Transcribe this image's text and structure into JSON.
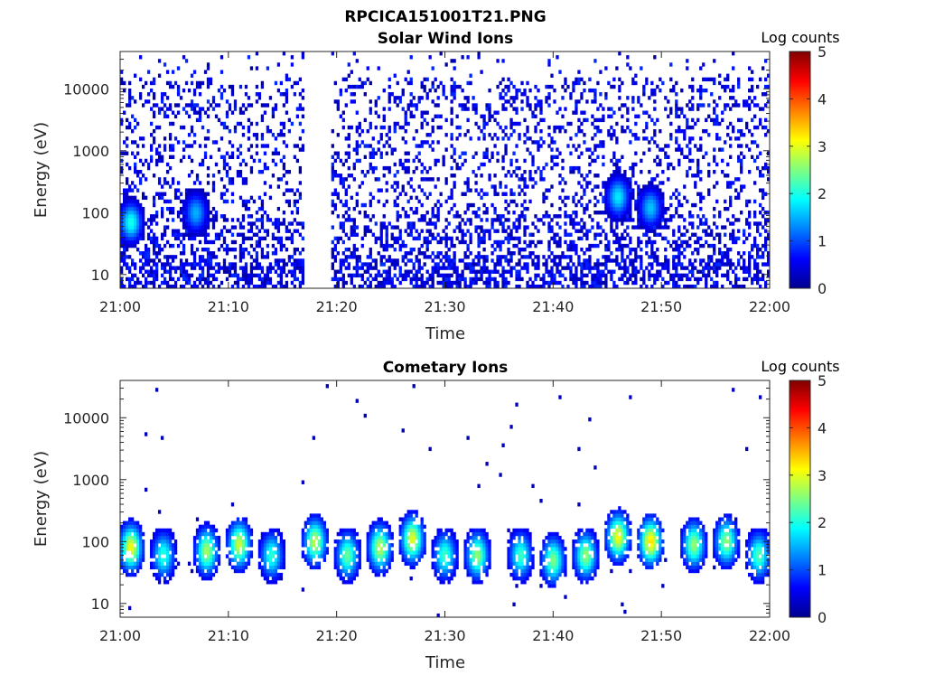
{
  "figure_title": "RPCICA151001T21.PNG",
  "colormap": "jet",
  "chart_data": [
    {
      "type": "heatmap",
      "title": "Solar Wind Ions",
      "xlabel": "Time",
      "ylabel": "Energy (eV)",
      "x_tick_labels": [
        "21:00",
        "21:10",
        "21:20",
        "21:30",
        "21:40",
        "21:50",
        "22:00"
      ],
      "x_range": [
        "21:00",
        "22:00"
      ],
      "y_scale": "log",
      "y_tick_labels": [
        "10",
        "100",
        "1000",
        "10000"
      ],
      "y_range_eV": [
        6,
        40000
      ],
      "colorbar_label": "Log counts",
      "colorbar_ticks": [
        "0",
        "1",
        "2",
        "3",
        "4",
        "5"
      ],
      "color_range": [
        0,
        5
      ],
      "data_gap": {
        "start": "21:17",
        "end": "21:19"
      },
      "hotspots": [
        {
          "time": "21:01",
          "energy_eV": 70,
          "log_counts": 2.0
        },
        {
          "time": "21:07",
          "energy_eV": 100,
          "log_counts": 1.5
        },
        {
          "time": "21:46",
          "energy_eV": 180,
          "log_counts": 1.8
        },
        {
          "time": "21:49",
          "energy_eV": 120,
          "log_counts": 1.6
        }
      ]
    },
    {
      "type": "heatmap",
      "title": "Cometary Ions",
      "xlabel": "Time",
      "ylabel": "Energy (eV)",
      "x_tick_labels": [
        "21:00",
        "21:10",
        "21:20",
        "21:30",
        "21:40",
        "21:50",
        "22:00"
      ],
      "x_range": [
        "21:00",
        "22:00"
      ],
      "y_scale": "log",
      "y_tick_labels": [
        "10",
        "100",
        "1000",
        "10000"
      ],
      "y_range_eV": [
        6,
        40000
      ],
      "colorbar_label": "Log counts",
      "colorbar_ticks": [
        "0",
        "1",
        "2",
        "3",
        "4",
        "5"
      ],
      "color_range": [
        0,
        5
      ],
      "bursts": [
        {
          "time": "21:01",
          "energy_eV": 80,
          "log_counts": 2.8
        },
        {
          "time": "21:04",
          "energy_eV": 60,
          "log_counts": 1.8
        },
        {
          "time": "21:08",
          "energy_eV": 70,
          "log_counts": 2.4
        },
        {
          "time": "21:11",
          "energy_eV": 90,
          "log_counts": 2.6
        },
        {
          "time": "21:14",
          "energy_eV": 60,
          "log_counts": 1.8
        },
        {
          "time": "21:18",
          "energy_eV": 100,
          "log_counts": 2.5
        },
        {
          "time": "21:21",
          "energy_eV": 60,
          "log_counts": 2.1
        },
        {
          "time": "21:24",
          "energy_eV": 80,
          "log_counts": 2.5
        },
        {
          "time": "21:27",
          "energy_eV": 110,
          "log_counts": 2.7
        },
        {
          "time": "21:30",
          "energy_eV": 60,
          "log_counts": 1.9
        },
        {
          "time": "21:33",
          "energy_eV": 60,
          "log_counts": 2.3
        },
        {
          "time": "21:37",
          "energy_eV": 60,
          "log_counts": 1.9
        },
        {
          "time": "21:40",
          "energy_eV": 50,
          "log_counts": 2.2
        },
        {
          "time": "21:43",
          "energy_eV": 60,
          "log_counts": 2.3
        },
        {
          "time": "21:46",
          "energy_eV": 120,
          "log_counts": 2.8
        },
        {
          "time": "21:49",
          "energy_eV": 100,
          "log_counts": 3.0
        },
        {
          "time": "21:53",
          "energy_eV": 90,
          "log_counts": 2.3
        },
        {
          "time": "21:56",
          "energy_eV": 100,
          "log_counts": 2.3
        },
        {
          "time": "21:59",
          "energy_eV": 60,
          "log_counts": 2.0
        }
      ]
    }
  ]
}
